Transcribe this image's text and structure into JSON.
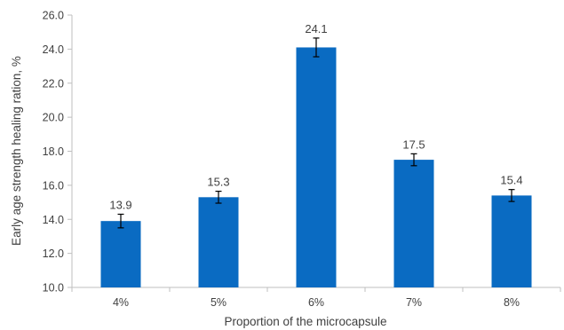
{
  "chart_data": {
    "type": "bar",
    "categories": [
      "4%",
      "5%",
      "6%",
      "7%",
      "8%"
    ],
    "values": [
      13.9,
      15.3,
      24.1,
      17.5,
      15.4
    ],
    "error": [
      0.4,
      0.35,
      0.55,
      0.35,
      0.35
    ],
    "data_labels": [
      "13.9",
      "15.3",
      "24.1",
      "17.5",
      "15.4"
    ],
    "xlabel": "Proportion of the microcapsule",
    "ylabel": "Early age strength healing ration, %",
    "ylim": [
      10.0,
      26.0
    ],
    "yticks": [
      "10.0",
      "12.0",
      "14.0",
      "16.0",
      "18.0",
      "20.0",
      "22.0",
      "24.0",
      "26.0"
    ],
    "grid": false,
    "legend": "none",
    "bar_color": "#0A6BC2",
    "axis_color": "#BFBFBF",
    "text_color": "#404040"
  }
}
